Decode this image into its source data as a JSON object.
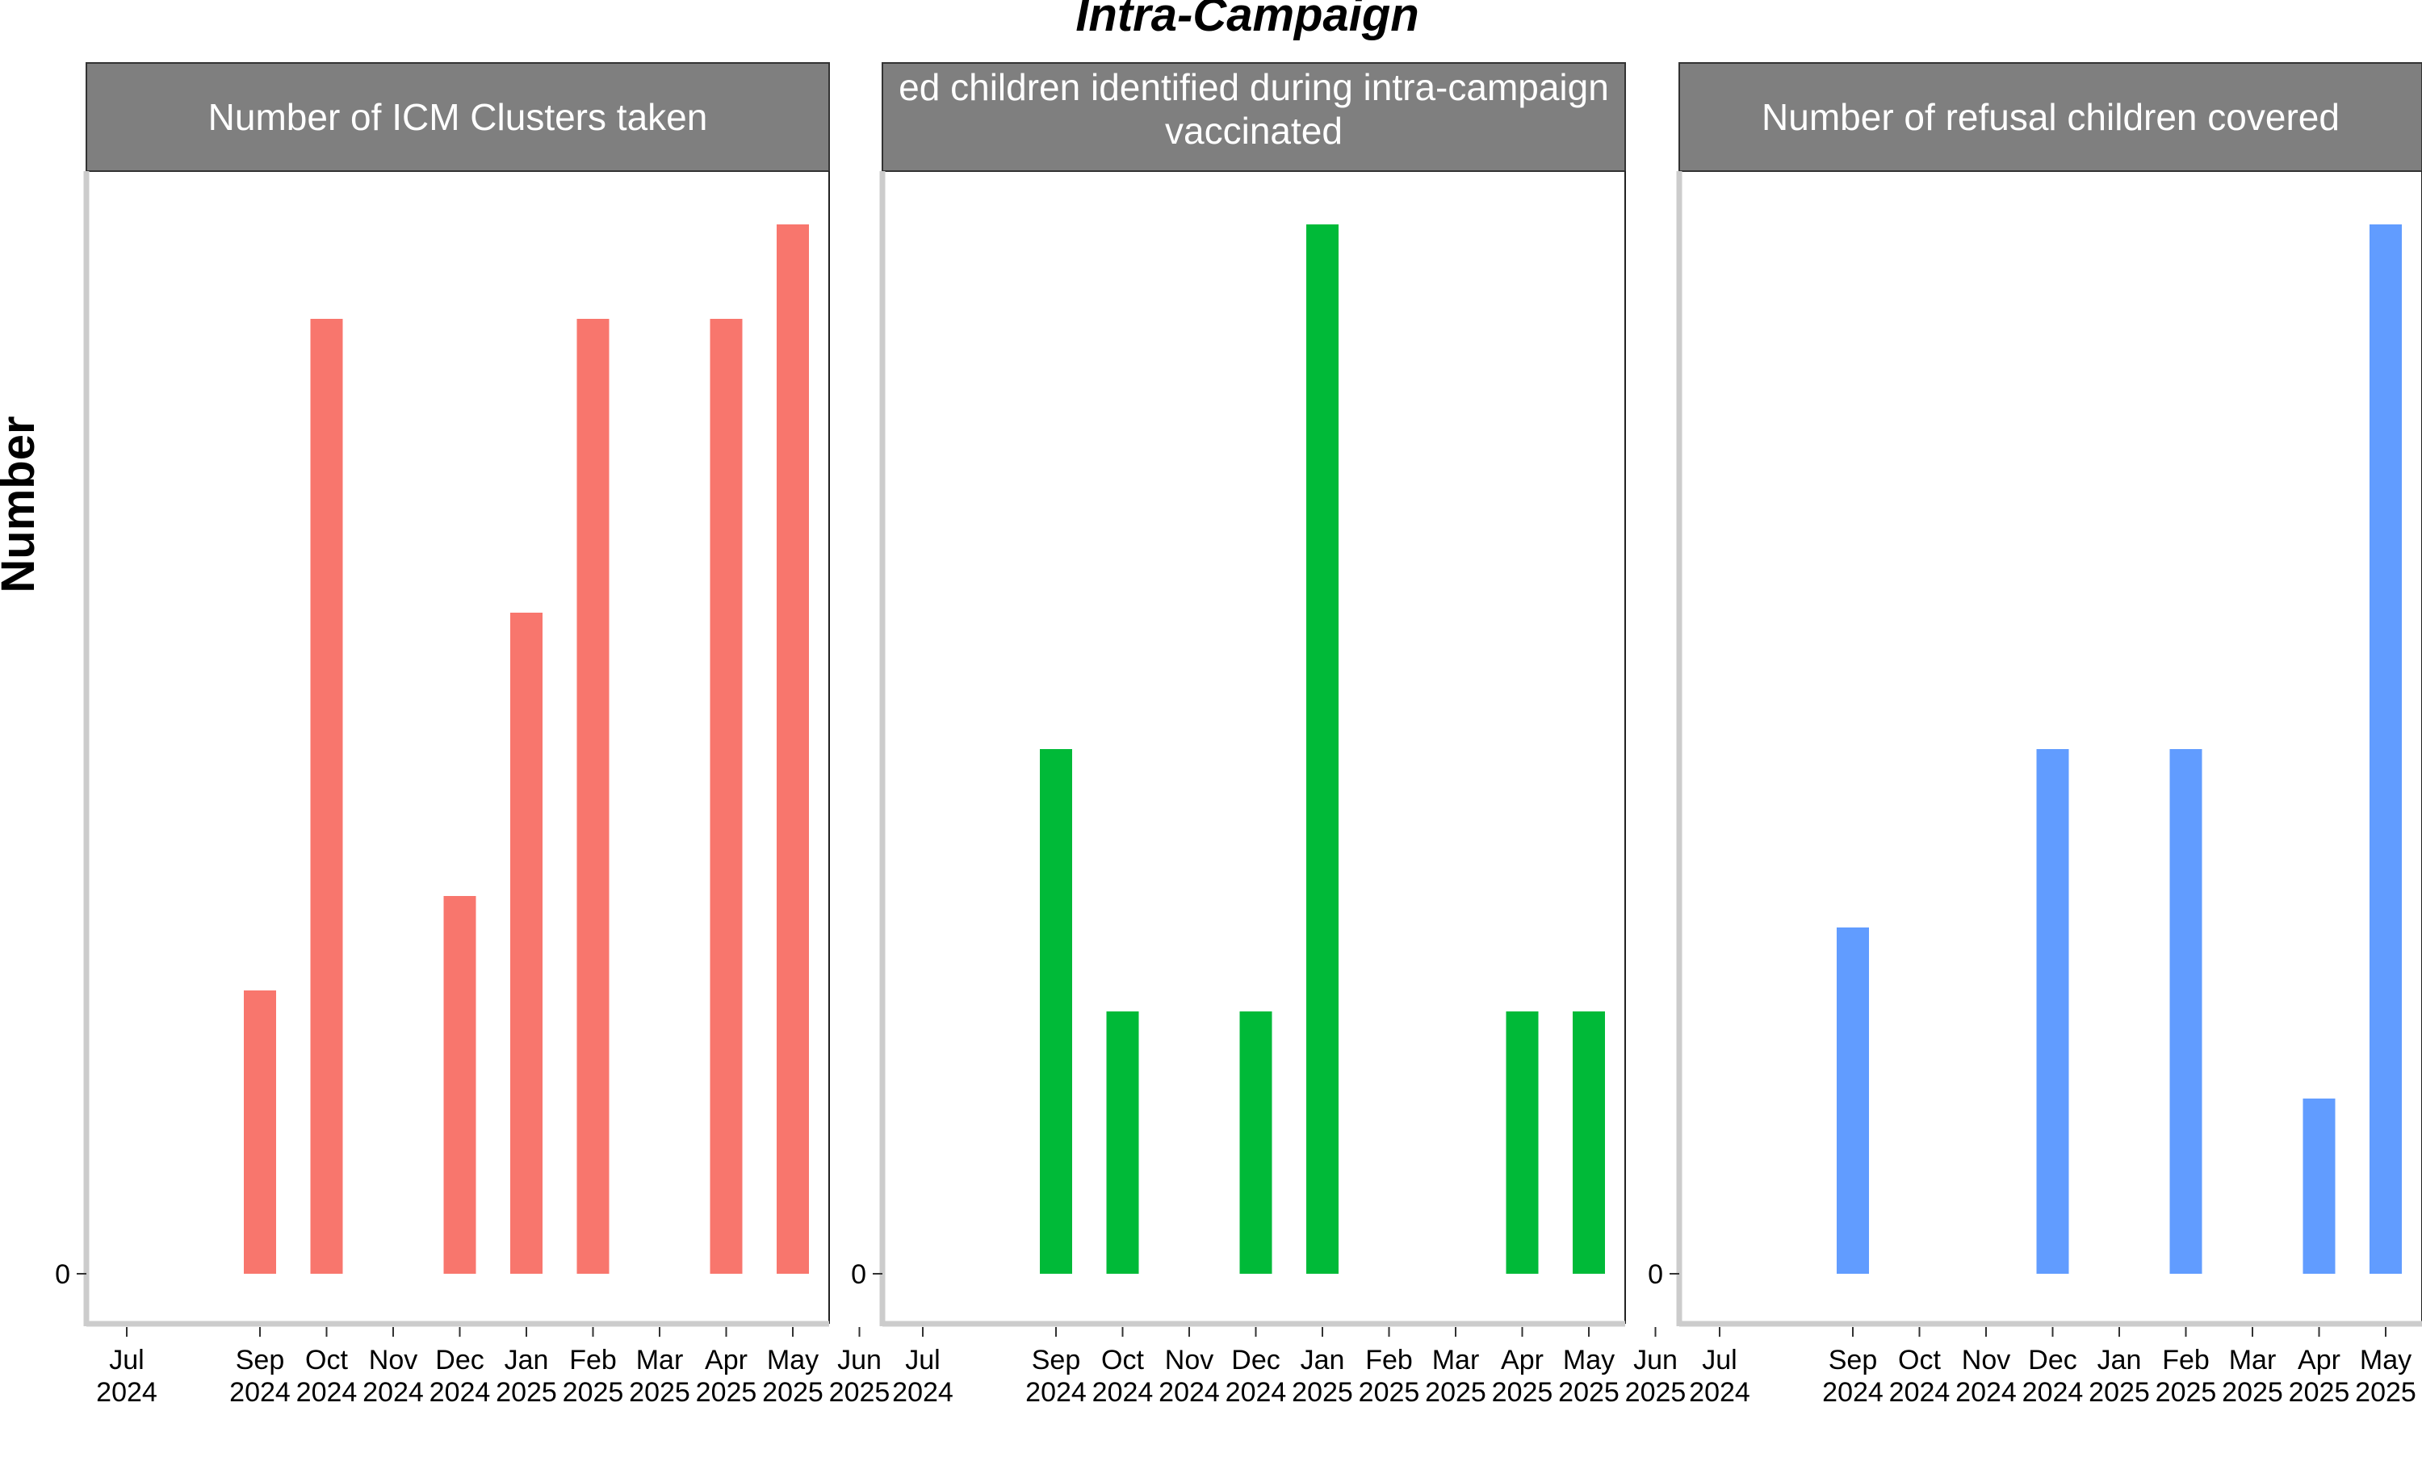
{
  "chart_data": {
    "type": "bar",
    "title": "Intra-Campaign",
    "ylabel": "Number",
    "xlabel": "",
    "grid": false,
    "categories": [
      "Jul\n2024",
      "Sep\n2024",
      "Oct\n2024",
      "Nov\n2024",
      "Dec\n2024",
      "Jan\n2025",
      "Feb\n2025",
      "Mar\n2025",
      "Apr\n2025",
      "May\n2025",
      "Jun\n2025"
    ],
    "month_index": [
      0,
      2,
      3,
      4,
      5,
      6,
      7,
      8,
      9,
      10,
      11
    ],
    "y_tick_labels": [
      "0"
    ],
    "panels": [
      {
        "strip": [
          "Number of ICM Clusters taken"
        ],
        "color": "#F8766D",
        "ylim": [
          0,
          1.05
        ],
        "bars": [
          {
            "month": "Sep 2024",
            "value": 0.27
          },
          {
            "month": "Oct 2024",
            "value": 0.91
          },
          {
            "month": "Dec 2024",
            "value": 0.36
          },
          {
            "month": "Jan 2025",
            "value": 0.63
          },
          {
            "month": "Feb 2025",
            "value": 0.91
          },
          {
            "month": "Apr 2025",
            "value": 0.91
          },
          {
            "month": "May 2025",
            "value": 1.0
          }
        ]
      },
      {
        "strip": [
          "ed children identified during intra-campaign",
          "vaccinated"
        ],
        "color": "#00BA38",
        "ylim": [
          0,
          1.05
        ],
        "bars": [
          {
            "month": "Sep 2024",
            "value": 0.5
          },
          {
            "month": "Oct 2024",
            "value": 0.25
          },
          {
            "month": "Dec 2024",
            "value": 0.25
          },
          {
            "month": "Jan 2025",
            "value": 1.0
          },
          {
            "month": "Apr 2025",
            "value": 0.25
          },
          {
            "month": "May 2025",
            "value": 0.25
          }
        ]
      },
      {
        "strip": [
          "Number of refusal children covered"
        ],
        "color": "#619CFF",
        "ylim": [
          0,
          1.05
        ],
        "bars": [
          {
            "month": "Sep 2024",
            "value": 0.33
          },
          {
            "month": "Dec 2024",
            "value": 0.5
          },
          {
            "month": "Feb 2025",
            "value": 0.5
          },
          {
            "month": "Apr 2025",
            "value": 0.167
          },
          {
            "month": "May 2025",
            "value": 1.0
          }
        ]
      }
    ]
  }
}
